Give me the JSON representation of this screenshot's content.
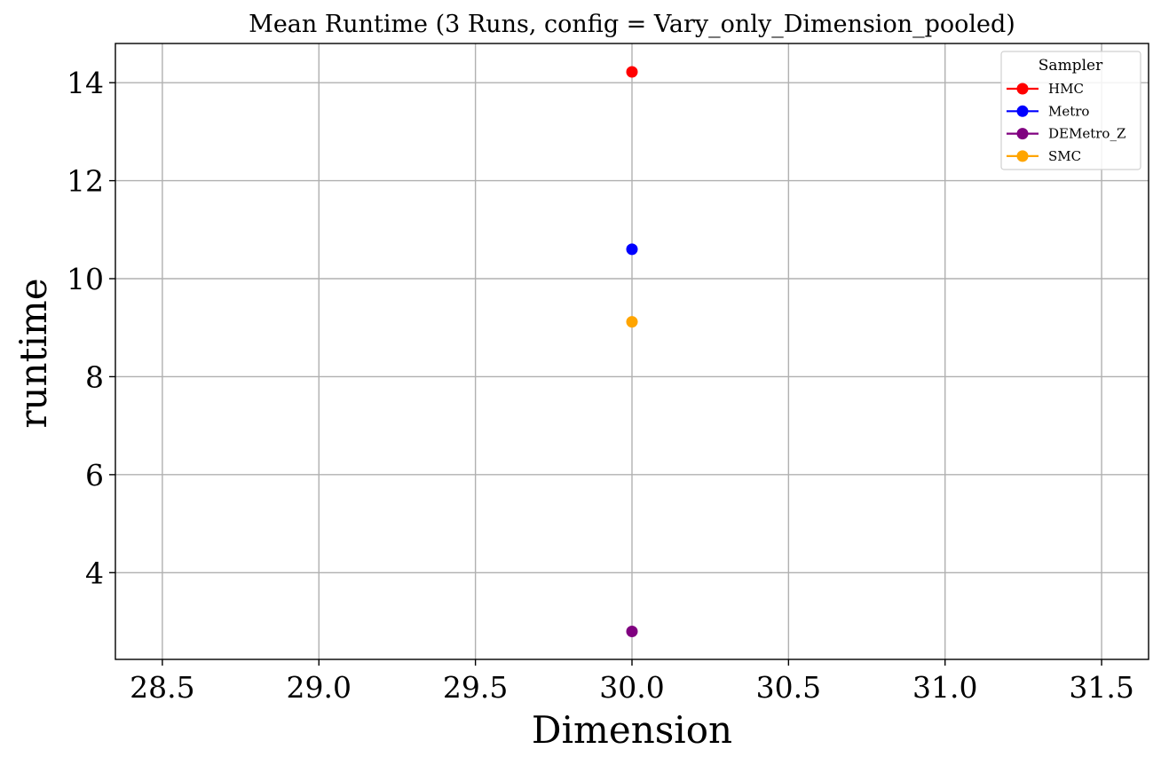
{
  "chart_data": {
    "type": "scatter",
    "title": "Mean Runtime (3 Runs, config = Vary_only_Dimension_pooled)",
    "xlabel": "Dimension",
    "ylabel": "runtime",
    "xlim": [
      28.35,
      31.65
    ],
    "ylim": [
      2.23,
      14.8
    ],
    "xticks": [
      28.5,
      29.0,
      29.5,
      30.0,
      30.5,
      31.0,
      31.5
    ],
    "xtick_labels": [
      "28.5",
      "29.0",
      "29.5",
      "30.0",
      "30.5",
      "31.0",
      "31.5"
    ],
    "yticks": [
      4,
      6,
      8,
      10,
      12,
      14
    ],
    "ytick_labels": [
      "4",
      "6",
      "8",
      "10",
      "12",
      "14"
    ],
    "grid": true,
    "legend": {
      "title": "Sampler",
      "placement": "top-right"
    },
    "series": [
      {
        "name": "HMC",
        "color": "#ff0000",
        "x": [
          30.0
        ],
        "y": [
          14.22
        ]
      },
      {
        "name": "Metro",
        "color": "#0000ff",
        "x": [
          30.0
        ],
        "y": [
          10.6
        ]
      },
      {
        "name": "DEMetro_Z",
        "color": "#800080",
        "x": [
          30.0
        ],
        "y": [
          2.8
        ]
      },
      {
        "name": "SMC",
        "color": "#ffa500",
        "x": [
          30.0
        ],
        "y": [
          9.12
        ]
      }
    ]
  }
}
